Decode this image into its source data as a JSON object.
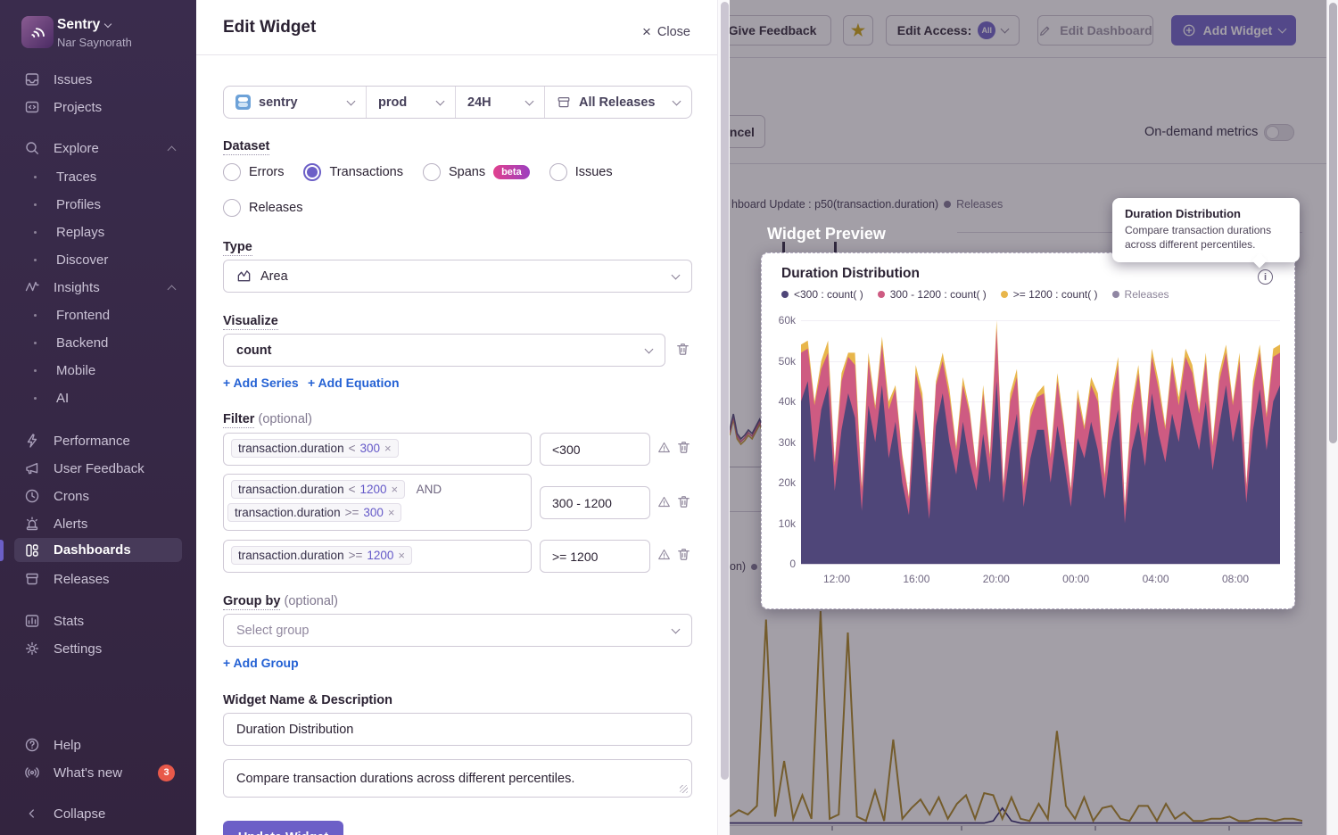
{
  "colors": {
    "accent": "#6C5FC7",
    "link": "#2562D4",
    "sidebar_bg": "#33243F",
    "series_navy": "#4F4679",
    "series_pink": "#CE5B82",
    "series_yellow": "#E8B64B",
    "releases_grey": "#9086A3",
    "bg_gold": "#A9841C",
    "bg_navy": "#2A2066",
    "badge_red": "#E8594A"
  },
  "sidebar": {
    "org": "Sentry",
    "user": "Nar Saynorath",
    "items": [
      {
        "label": "Issues"
      },
      {
        "label": "Projects"
      }
    ],
    "explore": {
      "label": "Explore",
      "children": [
        "Traces",
        "Profiles",
        "Replays",
        "Discover"
      ]
    },
    "insights": {
      "label": "Insights",
      "children": [
        "Frontend",
        "Backend",
        "Mobile",
        "AI"
      ]
    },
    "tools": [
      "Performance",
      "User Feedback",
      "Crons",
      "Alerts",
      "Dashboards",
      "Releases"
    ],
    "footer": [
      "Stats",
      "Settings"
    ],
    "help": "Help",
    "whats_new": "What's new",
    "whats_new_badge": "3",
    "collapse": "Collapse"
  },
  "panel": {
    "title": "Edit Widget",
    "close": "Close",
    "scope": {
      "project": "sentry",
      "environment": "prod",
      "range": "24H",
      "releases": "All Releases"
    },
    "dataset": {
      "label": "Dataset",
      "options": [
        {
          "label": "Errors",
          "selected": false
        },
        {
          "label": "Transactions",
          "selected": true
        },
        {
          "label": "Spans",
          "selected": false,
          "badge": "beta"
        },
        {
          "label": "Issues",
          "selected": false
        },
        {
          "label": "Releases",
          "selected": false
        }
      ]
    },
    "type": {
      "label": "Type",
      "value": "Area"
    },
    "visualize": {
      "label": "Visualize",
      "value": "count",
      "add_series": "+ Add Series",
      "add_equation": "+ Add Equation"
    },
    "filter": {
      "label": "Filter",
      "optional": "(optional)",
      "rows": [
        {
          "tokens": [
            {
              "field": "transaction.duration",
              "op": "<",
              "value": "300"
            }
          ],
          "alias": "<300"
        },
        {
          "tokens": [
            {
              "field": "transaction.duration",
              "op": "<",
              "value": "1200"
            },
            {
              "field": "transaction.duration",
              "op": ">=",
              "value": "300"
            }
          ],
          "joiner": "AND",
          "alias": "300 - 1200"
        },
        {
          "tokens": [
            {
              "field": "transaction.duration",
              "op": ">=",
              "value": "1200"
            }
          ],
          "alias": ">= 1200"
        }
      ]
    },
    "group_by": {
      "label": "Group by",
      "optional": "(optional)",
      "placeholder": "Select group",
      "add_group": "+ Add Group"
    },
    "name_section": {
      "label": "Widget Name & Description",
      "name": "Duration Distribution",
      "description": "Compare transaction durations across different percentiles."
    },
    "update_button": "Update Widget"
  },
  "toolbar": {
    "give_feedback": "Give Feedback",
    "edit_access": "Edit Access:",
    "edit_access_badge": "All",
    "edit_dashboard": "Edit Dashboard",
    "add_widget": "Add Widget",
    "cancel_fragment": "Cancel",
    "on_demand": "On-demand metrics"
  },
  "background": {
    "legend_fragment": "hboard Update : p50(transaction.duration)",
    "legend_releases": "Releases",
    "fragment2": "on)"
  },
  "preview": {
    "heading": "Widget Preview",
    "card_title": "Duration Distribution",
    "legend": [
      {
        "label": "<300 : count( )",
        "color": "#4F4679"
      },
      {
        "label": "300 - 1200 : count( )",
        "color": "#CE5B82"
      },
      {
        "label": ">= 1200 : count( )",
        "color": "#E8B64B"
      },
      {
        "label": "Releases",
        "color": "#9086A3"
      }
    ],
    "tooltip": {
      "title": "Duration Distribution",
      "body": "Compare transaction durations across different percentiles."
    }
  },
  "chart_data": [
    {
      "type": "area",
      "stacked": true,
      "title": "Duration Distribution",
      "ylabel": "count",
      "ylim": [
        0,
        60000
      ],
      "values_unit": "thousands",
      "grid": true,
      "legend_position": "top",
      "y_ticks": [
        "0",
        "10k",
        "20k",
        "30k",
        "40k",
        "50k",
        "60k"
      ],
      "x_ticks": [
        "12:00",
        "16:00",
        "20:00",
        "00:00",
        "04:00",
        "08:00"
      ],
      "series": [
        {
          "name": "<300 : count()",
          "color": "#4F4679",
          "values": [
            40,
            45,
            25,
            38,
            44,
            18,
            33,
            42,
            36,
            13,
            39,
            30,
            44,
            26,
            35,
            20,
            12,
            38,
            28,
            11,
            34,
            42,
            30,
            22,
            35,
            25,
            18,
            32,
            20,
            45,
            15,
            28,
            37,
            14,
            26,
            33,
            33,
            20,
            34,
            25,
            14,
            31,
            26,
            35,
            28,
            16,
            30,
            38,
            10,
            28,
            35,
            24,
            42,
            32,
            25,
            37,
            30,
            43,
            35,
            28,
            40,
            23,
            34,
            44,
            30,
            38,
            15,
            33,
            43,
            28,
            40,
            44
          ]
        },
        {
          "name": "300 - 1200 : count()",
          "color": "#CE5B82",
          "values": [
            12,
            8,
            14,
            10,
            8,
            6,
            12,
            9,
            13,
            5,
            11,
            8,
            10,
            12,
            8,
            6,
            4,
            9,
            12,
            4,
            10,
            8,
            11,
            6,
            9,
            12,
            5,
            10,
            6,
            13,
            4,
            12,
            9,
            5,
            10,
            8,
            9,
            6,
            11,
            8,
            4,
            10,
            7,
            9,
            12,
            5,
            10,
            11,
            4,
            9,
            12,
            7,
            9,
            11,
            8,
            12,
            9,
            8,
            12,
            9,
            10,
            6,
            11,
            8,
            9,
            12,
            4,
            10,
            9,
            8,
            11,
            8
          ]
        },
        {
          "name": ">= 1200 : count()",
          "color": "#E8B64B",
          "values": [
            2,
            2,
            1,
            2,
            3,
            1,
            2,
            1,
            3,
            1,
            2,
            1,
            2,
            2,
            1,
            1,
            0.5,
            2,
            2,
            0.5,
            1,
            2,
            2,
            1,
            2,
            1,
            0.5,
            2,
            1,
            2,
            0.5,
            2,
            2,
            1,
            2,
            1,
            2,
            1,
            2,
            1,
            0.5,
            2,
            1,
            2,
            2,
            1,
            2,
            2,
            0.5,
            2,
            2,
            1,
            2,
            2,
            1,
            2,
            2,
            2,
            2,
            1,
            2,
            1,
            2,
            2,
            1,
            2,
            0.5,
            2,
            2,
            1,
            2,
            2
          ]
        }
      ]
    },
    {
      "type": "line",
      "title": "background-dashboard-chart (dimmed, values estimated % of height)",
      "series": [
        {
          "name": "gold-line",
          "color": "#A9841C",
          "values": [
            4,
            7,
            5,
            9,
            96,
            4,
            30,
            3,
            14,
            3,
            100,
            3,
            5,
            90,
            4,
            2,
            16,
            2,
            40,
            3,
            8,
            12,
            5,
            13,
            3,
            10,
            14,
            3,
            15,
            14,
            3,
            13,
            3,
            2,
            10,
            3,
            44,
            9,
            3,
            13,
            2,
            8,
            9,
            3,
            2,
            9,
            9,
            2,
            10,
            3,
            6,
            2,
            2,
            3,
            3,
            4,
            2,
            2,
            3,
            3,
            2,
            3,
            3,
            2
          ]
        },
        {
          "name": "navy-line",
          "color": "#2A2066",
          "values": [
            1,
            1,
            1,
            1,
            1,
            1,
            1,
            1,
            1,
            1,
            1,
            1,
            1,
            1,
            1,
            1,
            1,
            1,
            1,
            1,
            1,
            1,
            1,
            1,
            1,
            1,
            1,
            1,
            1,
            2,
            8,
            2,
            1,
            1,
            1,
            1,
            1,
            1,
            1,
            1,
            1,
            1,
            1,
            1,
            1,
            1,
            1,
            1,
            1,
            1,
            1,
            1,
            1,
            1,
            1,
            1,
            1,
            1,
            1,
            1,
            1,
            1,
            1,
            1
          ]
        }
      ]
    },
    {
      "type": "line",
      "title": "background-mini-chart-fragment (dimmed)",
      "values": [
        30,
        12,
        34,
        40,
        36,
        30,
        34,
        26,
        18,
        28,
        22
      ]
    }
  ]
}
